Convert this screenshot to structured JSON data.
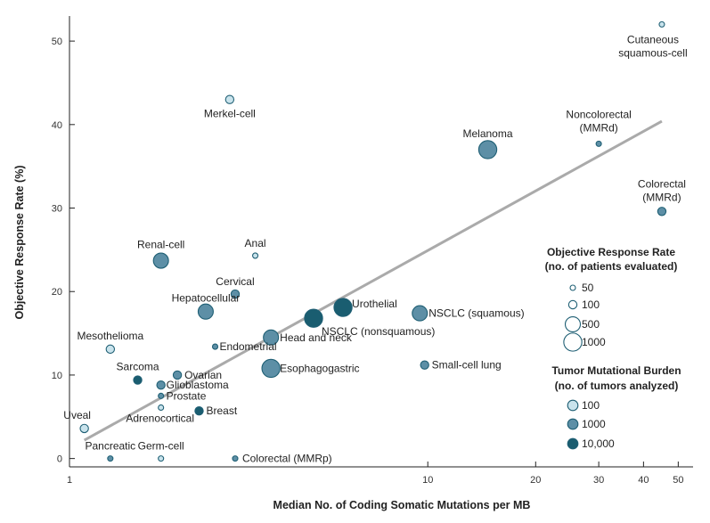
{
  "chart_data": {
    "type": "scatter",
    "xlabel": "Median No. of Coding Somatic Mutations per MB",
    "ylabel": "Objective Response Rate (%)",
    "x_scale": "log",
    "xlim": [
      1,
      55
    ],
    "ylim": [
      -1,
      53
    ],
    "x_ticks": [
      1,
      10,
      20,
      30,
      40,
      50
    ],
    "y_ticks": [
      0,
      10,
      20,
      30,
      40,
      50
    ],
    "grid": false,
    "colors": {
      "light": "#c9e3ec",
      "medium": "#5d8fa6",
      "dark": "#1a5d70",
      "stroke": "#1f5f74",
      "trend": "#aaaaaa"
    },
    "points": [
      {
        "label": "Cutaneous\nsquamous-cell",
        "x": 45,
        "y": 52,
        "n": 50,
        "burden": "light"
      },
      {
        "label": "Merkel-cell",
        "x": 2.8,
        "y": 43,
        "n": 100,
        "burden": "light"
      },
      {
        "label": "Melanoma",
        "x": 14.7,
        "y": 37,
        "n": 1000,
        "burden": "medium"
      },
      {
        "label": "Noncolorectal\n(MMRd)",
        "x": 30,
        "y": 37.7,
        "n": 50,
        "burden": "medium"
      },
      {
        "label": "Colorectal\n(MMRd)",
        "x": 45,
        "y": 29.6,
        "n": 100,
        "burden": "medium"
      },
      {
        "label": "Renal-cell",
        "x": 1.8,
        "y": 23.7,
        "n": 500,
        "burden": "medium"
      },
      {
        "label": "Anal",
        "x": 3.3,
        "y": 24.3,
        "n": 50,
        "burden": "light"
      },
      {
        "label": "Cervical",
        "x": 2.9,
        "y": 19.7,
        "n": 100,
        "burden": "medium"
      },
      {
        "label": "Hepatocellular",
        "x": 2.4,
        "y": 17.6,
        "n": 500,
        "burden": "medium"
      },
      {
        "label": "Urothelial",
        "x": 5.8,
        "y": 18.1,
        "n": 1000,
        "burden": "dark"
      },
      {
        "label": "NSCLC (squamous)",
        "x": 9.5,
        "y": 17.4,
        "n": 500,
        "burden": "medium"
      },
      {
        "label": "NSCLC (nonsquamous)",
        "x": 4.8,
        "y": 16.8,
        "n": 1000,
        "burden": "dark"
      },
      {
        "label": "Head and neck",
        "x": 3.65,
        "y": 14.5,
        "n": 500,
        "burden": "medium"
      },
      {
        "label": "Endometrial",
        "x": 2.55,
        "y": 13.4,
        "n": 50,
        "burden": "medium"
      },
      {
        "label": "Mesothelioma",
        "x": 1.3,
        "y": 13.1,
        "n": 100,
        "burden": "light"
      },
      {
        "label": "Esophagogastric",
        "x": 3.65,
        "y": 10.8,
        "n": 1000,
        "burden": "medium"
      },
      {
        "label": "Small-cell lung",
        "x": 9.8,
        "y": 11.2,
        "n": 100,
        "burden": "medium"
      },
      {
        "label": "Sarcoma",
        "x": 1.55,
        "y": 9.4,
        "n": 100,
        "burden": "dark"
      },
      {
        "label": "Ovarian",
        "x": 2.0,
        "y": 10.0,
        "n": 100,
        "burden": "medium"
      },
      {
        "label": "Glioblastoma",
        "x": 1.8,
        "y": 8.8,
        "n": 100,
        "burden": "medium"
      },
      {
        "label": "Prostate",
        "x": 1.8,
        "y": 7.5,
        "n": 50,
        "burden": "medium"
      },
      {
        "label": "Adrenocortical",
        "x": 1.8,
        "y": 6.1,
        "n": 50,
        "burden": "light"
      },
      {
        "label": "Breast",
        "x": 2.3,
        "y": 5.7,
        "n": 100,
        "burden": "dark"
      },
      {
        "label": "Uveal",
        "x": 1.1,
        "y": 3.6,
        "n": 100,
        "burden": "light"
      },
      {
        "label": "Pancreatic",
        "x": 1.3,
        "y": 0,
        "n": 50,
        "burden": "medium"
      },
      {
        "label": "Germ-cell",
        "x": 1.8,
        "y": 0,
        "n": 50,
        "burden": "light"
      },
      {
        "label": "Colorectal (MMRp)",
        "x": 2.9,
        "y": 0,
        "n": 50,
        "burden": "medium"
      }
    ],
    "trend_line": {
      "x": [
        1.1,
        45
      ],
      "y": [
        2.2,
        40.4
      ]
    },
    "legend": {
      "placement": "right",
      "response_title": "Objective Response Rate",
      "response_subtitle": "(no. of patients evaluated)",
      "response_sizes": [
        {
          "label": "50",
          "n": 50
        },
        {
          "label": "100",
          "n": 100
        },
        {
          "label": "500",
          "n": 500
        },
        {
          "label": "1000",
          "n": 1000
        }
      ],
      "burden_title": "Tumor Mutational Burden",
      "burden_subtitle": "(no. of tumors analyzed)",
      "burden_items": [
        {
          "label": "100",
          "burden": "light"
        },
        {
          "label": "1000",
          "burden": "medium"
        },
        {
          "label": "10,000",
          "burden": "dark"
        }
      ]
    }
  }
}
